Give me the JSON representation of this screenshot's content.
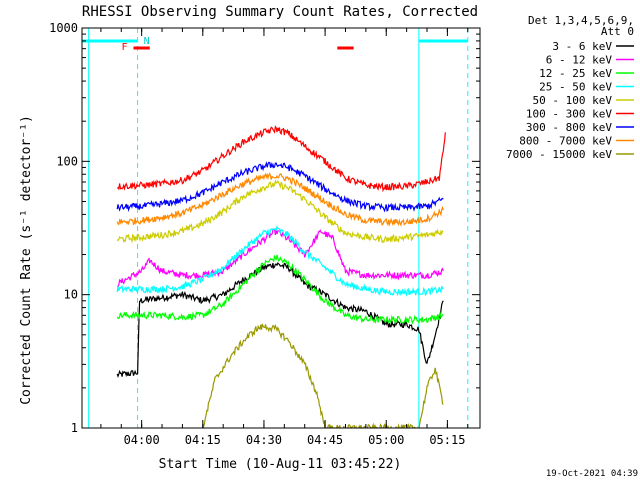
{
  "chart_data": {
    "type": "line",
    "title": "RHESSI Observing Summary Count Rates, Corrected",
    "ylabel": "Corrected Count Rate (s⁻¹ detector⁻¹)",
    "xlabel": "Start Time (10-Aug-11 03:45:22)",
    "yscale": "log",
    "ylim": [
      1,
      1000
    ],
    "xlim": [
      "03:45:22",
      "05:23:00"
    ],
    "xtick_labels": [
      "04:00",
      "04:15",
      "04:30",
      "04:45",
      "05:00",
      "05:15"
    ],
    "ytick_labels": [
      "1",
      "10",
      "100",
      "1000"
    ],
    "legend_header": [
      "Det 1,3,4,5,6,9,",
      "Att 0"
    ],
    "legend_position": "top-right",
    "flags": {
      "F": "F",
      "N": "N"
    },
    "timestamp": "19-Oct-2021 04:39",
    "series": [
      {
        "name": "3 - 6 keV",
        "color": "#000000",
        "points": [
          [
            "03:54",
            2.5
          ],
          [
            "03:59",
            2.6
          ],
          [
            "03:59:30",
            9
          ],
          [
            "04:05",
            9.5
          ],
          [
            "04:10",
            10
          ],
          [
            "04:15",
            9
          ],
          [
            "04:20",
            10
          ],
          [
            "04:25",
            13
          ],
          [
            "04:30",
            16
          ],
          [
            "04:33",
            17
          ],
          [
            "04:36",
            16
          ],
          [
            "04:40",
            12
          ],
          [
            "04:45",
            10
          ],
          [
            "04:50",
            8
          ],
          [
            "04:55",
            7.5
          ],
          [
            "05:00",
            6
          ],
          [
            "05:05",
            6
          ],
          [
            "05:08",
            5.5
          ],
          [
            "05:10",
            3
          ],
          [
            "05:12",
            5
          ],
          [
            "05:14",
            9
          ]
        ]
      },
      {
        "name": "6 - 12 keV",
        "color": "#ff00ff",
        "points": [
          [
            "03:54",
            12
          ],
          [
            "04:00",
            15
          ],
          [
            "04:02",
            18
          ],
          [
            "04:05",
            15
          ],
          [
            "04:10",
            14
          ],
          [
            "04:15",
            14
          ],
          [
            "04:20",
            15
          ],
          [
            "04:25",
            20
          ],
          [
            "04:30",
            26
          ],
          [
            "04:33",
            30
          ],
          [
            "04:36",
            26
          ],
          [
            "04:40",
            20
          ],
          [
            "04:44",
            30
          ],
          [
            "04:47",
            26
          ],
          [
            "04:50",
            15
          ],
          [
            "04:55",
            14
          ],
          [
            "05:00",
            14
          ],
          [
            "05:05",
            14
          ],
          [
            "05:10",
            14
          ],
          [
            "05:14",
            15
          ]
        ]
      },
      {
        "name": "12 - 25 keV",
        "color": "#00ff00",
        "points": [
          [
            "03:54",
            7
          ],
          [
            "04:00",
            7
          ],
          [
            "04:05",
            7
          ],
          [
            "04:10",
            6.8
          ],
          [
            "04:15",
            7
          ],
          [
            "04:20",
            8.5
          ],
          [
            "04:25",
            12
          ],
          [
            "04:30",
            17
          ],
          [
            "04:33",
            19
          ],
          [
            "04:36",
            17
          ],
          [
            "04:40",
            13
          ],
          [
            "04:45",
            9
          ],
          [
            "04:50",
            7
          ],
          [
            "04:55",
            6.5
          ],
          [
            "05:00",
            6.5
          ],
          [
            "05:05",
            6.5
          ],
          [
            "05:10",
            6.5
          ],
          [
            "05:14",
            7
          ]
        ]
      },
      {
        "name": "25 - 50 keV",
        "color": "#00ffff",
        "points": [
          [
            "03:54",
            11
          ],
          [
            "04:00",
            11
          ],
          [
            "04:05",
            11
          ],
          [
            "04:10",
            11.5
          ],
          [
            "04:15",
            13
          ],
          [
            "04:20",
            16
          ],
          [
            "04:25",
            22
          ],
          [
            "04:30",
            29
          ],
          [
            "04:33",
            31
          ],
          [
            "04:36",
            28
          ],
          [
            "04:40",
            21
          ],
          [
            "04:45",
            16
          ],
          [
            "04:50",
            12
          ],
          [
            "04:55",
            11
          ],
          [
            "05:00",
            10.5
          ],
          [
            "05:05",
            10.5
          ],
          [
            "05:10",
            10.5
          ],
          [
            "05:14",
            11
          ]
        ]
      },
      {
        "name": "50 - 100 keV",
        "color": "#cccc00",
        "points": [
          [
            "03:54",
            26
          ],
          [
            "04:00",
            27
          ],
          [
            "04:05",
            28
          ],
          [
            "04:10",
            30
          ],
          [
            "04:15",
            34
          ],
          [
            "04:20",
            42
          ],
          [
            "04:25",
            55
          ],
          [
            "04:30",
            64
          ],
          [
            "04:33",
            68
          ],
          [
            "04:36",
            63
          ],
          [
            "04:40",
            52
          ],
          [
            "04:45",
            38
          ],
          [
            "04:50",
            29
          ],
          [
            "04:55",
            27
          ],
          [
            "05:00",
            26
          ],
          [
            "05:05",
            27
          ],
          [
            "05:10",
            28
          ],
          [
            "05:14",
            30
          ]
        ]
      },
      {
        "name": "100 - 300 keV",
        "color": "#ff0000",
        "points": [
          [
            "03:54",
            65
          ],
          [
            "04:00",
            66
          ],
          [
            "04:05",
            68
          ],
          [
            "04:10",
            72
          ],
          [
            "04:15",
            85
          ],
          [
            "04:20",
            110
          ],
          [
            "04:25",
            140
          ],
          [
            "04:30",
            165
          ],
          [
            "04:33",
            175
          ],
          [
            "04:36",
            162
          ],
          [
            "04:40",
            130
          ],
          [
            "04:45",
            100
          ],
          [
            "04:50",
            75
          ],
          [
            "04:55",
            66
          ],
          [
            "05:00",
            64
          ],
          [
            "05:05",
            65
          ],
          [
            "05:10",
            70
          ],
          [
            "05:13",
            75
          ],
          [
            "05:14",
            120
          ],
          [
            "05:14:30",
            165
          ]
        ]
      },
      {
        "name": "300 - 800 keV",
        "color": "#0000ff",
        "points": [
          [
            "03:54",
            45
          ],
          [
            "04:00",
            46
          ],
          [
            "04:05",
            48
          ],
          [
            "04:10",
            51
          ],
          [
            "04:15",
            58
          ],
          [
            "04:20",
            70
          ],
          [
            "04:25",
            82
          ],
          [
            "04:30",
            92
          ],
          [
            "04:33",
            95
          ],
          [
            "04:36",
            90
          ],
          [
            "04:40",
            78
          ],
          [
            "04:45",
            62
          ],
          [
            "04:50",
            51
          ],
          [
            "04:55",
            46
          ],
          [
            "05:00",
            45
          ],
          [
            "05:05",
            45
          ],
          [
            "05:10",
            46
          ],
          [
            "05:14",
            52
          ]
        ]
      },
      {
        "name": "800 - 7000 keV",
        "color": "#ff8800",
        "points": [
          [
            "03:54",
            35
          ],
          [
            "04:00",
            36
          ],
          [
            "04:05",
            38
          ],
          [
            "04:10",
            41
          ],
          [
            "04:15",
            47
          ],
          [
            "04:20",
            57
          ],
          [
            "04:25",
            68
          ],
          [
            "04:30",
            76
          ],
          [
            "04:33",
            78
          ],
          [
            "04:36",
            74
          ],
          [
            "04:40",
            63
          ],
          [
            "04:45",
            50
          ],
          [
            "04:50",
            40
          ],
          [
            "04:55",
            36
          ],
          [
            "05:00",
            35
          ],
          [
            "05:05",
            35
          ],
          [
            "05:10",
            37
          ],
          [
            "05:14",
            43
          ]
        ]
      },
      {
        "name": "7000 - 15000 keV",
        "color": "#999900",
        "points": [
          [
            "04:15",
            1
          ],
          [
            "04:18",
            2.3
          ],
          [
            "04:22",
            3.5
          ],
          [
            "04:25",
            4.5
          ],
          [
            "04:28",
            5.5
          ],
          [
            "04:30",
            5.8
          ],
          [
            "04:33",
            5.5
          ],
          [
            "04:36",
            4.5
          ],
          [
            "04:40",
            3
          ],
          [
            "04:43",
            1.8
          ],
          [
            "04:45",
            1
          ],
          [
            "05:08",
            1
          ],
          [
            "05:10",
            2
          ],
          [
            "05:12",
            2.8
          ],
          [
            "05:14",
            1.5
          ]
        ]
      }
    ],
    "vertical_lines": [
      {
        "time": "03:47",
        "color": "#00ffff",
        "style": "solid"
      },
      {
        "time": "03:59",
        "color": "#00ffff",
        "style": "dashed"
      },
      {
        "time": "05:08",
        "color": "#00ffff",
        "style": "solid"
      },
      {
        "time": "05:20",
        "color": "#00ffff",
        "style": "dashed"
      }
    ],
    "top_bars": [
      {
        "start": "03:45:22",
        "end": "03:59",
        "color": "#00ffff",
        "label": ""
      },
      {
        "start": "05:08",
        "end": "05:20",
        "color": "#00ffff",
        "label": ""
      },
      {
        "start": "03:58",
        "end": "04:02",
        "color": "#ff0000",
        "label": "F"
      },
      {
        "start": "04:48",
        "end": "04:52",
        "color": "#ff0000",
        "label": ""
      }
    ]
  }
}
